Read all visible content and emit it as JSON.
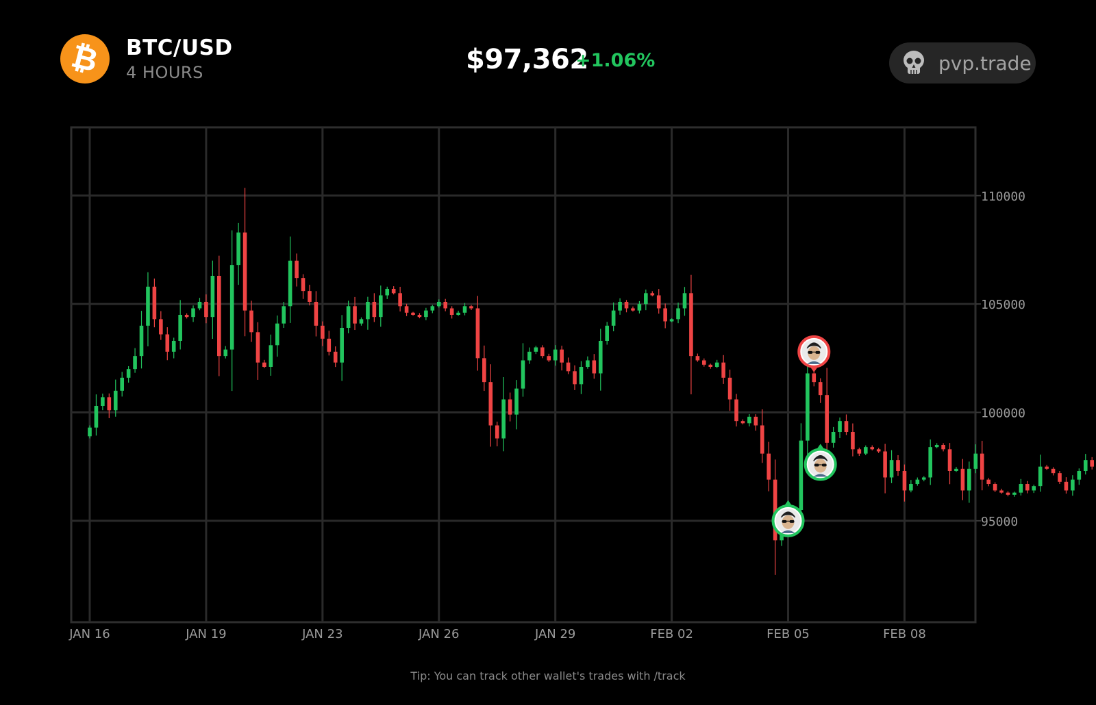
{
  "header": {
    "pair": "BTC/USD",
    "interval": "4 HOURS",
    "price": "$97,362",
    "change": "+1.06%",
    "brand": "pvp.trade",
    "coin_icon": "bitcoin-icon",
    "brand_icon": "skull-icon"
  },
  "tip": "Tip: You can track other wallet's trades with /track",
  "colors": {
    "up": "#22c55e",
    "down": "#ef4444",
    "grid": "#262626",
    "background": "#000000",
    "coin": "#f7931a"
  },
  "chart_data": {
    "type": "candlestick",
    "title": "",
    "xlabel": "",
    "ylabel": "",
    "ylim": [
      90000,
      113000
    ],
    "yticks": [
      95000,
      100000,
      105000,
      110000
    ],
    "ytick_labels": [
      "95000",
      "100000",
      "105000",
      "110000"
    ],
    "xticks": [
      0,
      18,
      36,
      54,
      72,
      90,
      108,
      126
    ],
    "xtick_labels": [
      "JAN 16",
      "JAN 19",
      "JAN 23",
      "JAN 26",
      "JAN 29",
      "FEB 02",
      "FEB 05",
      "FEB 08"
    ],
    "grid": true,
    "candles_close": [
      99300,
      100300,
      100700,
      100100,
      101000,
      101600,
      102000,
      102600,
      104000,
      105800,
      104300,
      103600,
      102800,
      103300,
      104500,
      104400,
      104800,
      105100,
      104400,
      106300,
      102600,
      102900,
      106800,
      108300,
      104700,
      103700,
      102300,
      102100,
      103100,
      104100,
      104900,
      107000,
      106200,
      105600,
      105100,
      104000,
      103400,
      102800,
      102300,
      103900,
      104900,
      104100,
      104300,
      105100,
      104400,
      105400,
      105700,
      105500,
      104900,
      104600,
      104500,
      104400,
      104700,
      104900,
      105100,
      104800,
      104500,
      104600,
      104900,
      104800,
      102500,
      101400,
      99400,
      98800,
      100600,
      99900,
      101100,
      102400,
      102800,
      103000,
      102600,
      102400,
      102900,
      102300,
      101900,
      101300,
      102100,
      102400,
      101800,
      103300,
      104000,
      104700,
      105100,
      104800,
      104700,
      105000,
      105500,
      105400,
      104800,
      104200,
      104300,
      104800,
      105500,
      102600,
      102400,
      102200,
      102100,
      102300,
      101600,
      100600,
      99600,
      99500,
      99800,
      99400,
      98100,
      96900,
      94100,
      95000,
      95100,
      95500,
      98700,
      101800,
      101400,
      100800,
      98600,
      99100,
      99600,
      99100,
      98300,
      98100,
      98400,
      98300,
      98200,
      97000,
      97800,
      97300,
      96400,
      96700,
      96900,
      97000,
      98400,
      98500,
      98300,
      97300,
      97400,
      96400,
      97400,
      98100,
      96900,
      96700,
      96400,
      96300,
      96200,
      96300,
      96700,
      96400,
      96600,
      97500,
      97400,
      97200,
      96800,
      96400,
      96900,
      97300,
      97800,
      97500
    ]
  },
  "annotations": [
    {
      "type": "buy",
      "candle": 108,
      "price": 95000,
      "label": "trader-avatar"
    },
    {
      "type": "sell",
      "candle": 112,
      "price": 102800,
      "label": "trader-avatar"
    },
    {
      "type": "buy",
      "candle": 113,
      "price": 97600,
      "label": "trader-avatar"
    }
  ]
}
